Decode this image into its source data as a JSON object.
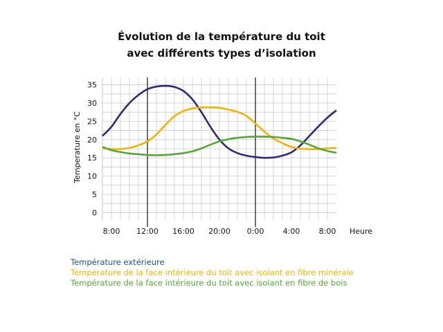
{
  "chart_data": {
    "type": "line",
    "title": [
      "Évolution de la température du toit",
      "avec différents types d’isolation"
    ],
    "xlabel": "Heure",
    "ylabel": "Temperature en °C",
    "x_ticks": [
      "8:00",
      "12:00",
      "16:00",
      "20:00",
      "0:00",
      "4:00",
      "8:00"
    ],
    "x_tick_hours": [
      0,
      4,
      8,
      12,
      16,
      20,
      24
    ],
    "y_ticks": [
      0,
      5,
      10,
      15,
      20,
      25,
      30,
      35
    ],
    "xlim": [
      -1,
      25
    ],
    "ylim": [
      -2,
      37
    ],
    "grid": true,
    "highlight_hours": [
      4,
      16
    ],
    "series": [
      {
        "name": "Température extérieure",
        "color": "#2b2a7a",
        "x": [
          -1,
          0,
          1,
          2,
          3,
          4,
          5,
          6,
          7,
          8,
          9,
          10,
          11,
          12,
          13,
          14,
          15,
          16,
          17,
          18,
          19,
          20,
          21,
          22,
          23,
          24,
          25
        ],
        "y": [
          21,
          23.5,
          27,
          30,
          32.2,
          33.8,
          34.5,
          34.7,
          34.4,
          33.3,
          31,
          27.5,
          23.5,
          20,
          17.6,
          16.3,
          15.6,
          15.2,
          15,
          15.1,
          15.6,
          16.5,
          18.4,
          21,
          23.6,
          26,
          28
        ]
      },
      {
        "name": "Température de la face intérieure du toit avec isolant en fibre minérale",
        "color": "#f0b400",
        "x": [
          -1,
          0,
          1,
          2,
          3,
          4,
          5,
          6,
          7,
          8,
          9,
          10,
          11,
          12,
          13,
          14,
          15,
          16,
          17,
          18,
          19,
          20,
          21,
          22,
          23,
          24,
          25
        ],
        "y": [
          17.6,
          17.4,
          17.4,
          17.7,
          18.4,
          19.5,
          21.4,
          24,
          26.4,
          27.8,
          28.5,
          28.8,
          28.8,
          28.7,
          28.2,
          27.6,
          26.5,
          24.4,
          22.2,
          20.3,
          19,
          18,
          17.5,
          17.4,
          17.4,
          17.6,
          17.7
        ]
      },
      {
        "name": "Température de la face intérieure du toit avec isolant en fibre de bois",
        "color": "#54a832",
        "x": [
          -1,
          0,
          1,
          2,
          3,
          4,
          5,
          6,
          7,
          8,
          9,
          10,
          11,
          12,
          13,
          14,
          15,
          16,
          17,
          18,
          19,
          20,
          21,
          22,
          23,
          24,
          25
        ],
        "y": [
          18,
          17.1,
          16.6,
          16.2,
          16,
          15.8,
          15.7,
          15.8,
          16,
          16.3,
          16.8,
          17.6,
          18.6,
          19.5,
          20.1,
          20.5,
          20.7,
          20.8,
          20.8,
          20.7,
          20.5,
          20.2,
          19.5,
          18.6,
          17.6,
          16.9,
          16.4
        ]
      }
    ]
  }
}
